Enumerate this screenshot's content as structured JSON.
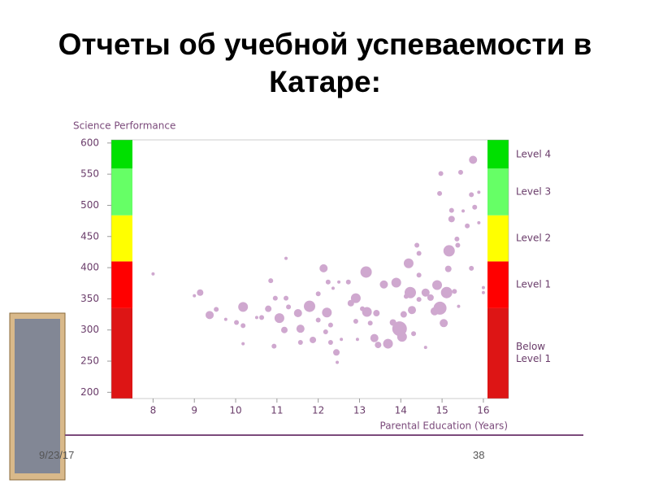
{
  "slide": {
    "title": "Отчеты об учебной успеваемости в Катаре:",
    "date": "9/23/17",
    "page": "38"
  },
  "chart_data": {
    "type": "scatter",
    "y_label": "Science Performance",
    "x_label": "Parental Education (Years)",
    "xlim": [
      7.5,
      16.1
    ],
    "xticks": [
      8,
      9,
      10,
      11,
      12,
      13,
      14,
      15,
      16
    ],
    "ylim": [
      190,
      605
    ],
    "yticks": [
      200,
      250,
      300,
      350,
      400,
      450,
      500,
      550,
      600
    ],
    "color": "#cfa8cf",
    "bands": [
      {
        "label": "Below Level 1",
        "color": "#dd1515"
      },
      {
        "label": "Level 1",
        "from": 335,
        "color": "#ff0000"
      },
      {
        "label": "Level 2",
        "from": 410,
        "color": "#ffff00"
      },
      {
        "label": "Level 3",
        "from": 484,
        "color": "#66ff66"
      },
      {
        "label": "Level 4",
        "from": 559,
        "color": "#00e000"
      }
    ],
    "x": [
      8.0,
      9.14,
      9.0,
      9.37,
      9.53,
      9.76,
      10.02,
      10.18,
      10.18,
      10.18,
      10.51,
      10.63,
      10.79,
      10.85,
      10.96,
      11.06,
      11.18,
      10.93,
      11.22,
      11.28,
      11.22,
      11.51,
      11.57,
      11.57,
      11.79,
      11.87,
      12.0,
      12.0,
      12.13,
      12.21,
      12.24,
      12.18,
      12.3,
      12.3,
      12.36,
      12.44,
      12.46,
      12.5,
      12.56,
      12.73,
      12.79,
      12.91,
      12.95,
      12.91,
      13.07,
      13.16,
      13.18,
      13.26,
      13.41,
      13.36,
      13.45,
      13.59,
      13.69,
      13.81,
      13.89,
      13.97,
      14.03,
      14.07,
      14.13,
      14.19,
      14.23,
      14.27,
      14.31,
      14.39,
      14.44,
      14.44,
      14.44,
      14.6,
      14.6,
      14.72,
      14.82,
      14.88,
      14.94,
      14.95,
      14.97,
      15.04,
      15.11,
      15.15,
      15.17,
      15.23,
      15.23,
      15.3,
      15.38,
      15.36,
      15.4,
      15.45,
      15.51,
      15.61,
      15.71,
      15.71,
      15.75,
      15.79,
      15.89,
      15.89,
      16.0,
      16.0
    ],
    "values": [
      390,
      360,
      355,
      324,
      333,
      317,
      312,
      337,
      307,
      278,
      320,
      320,
      334,
      379,
      351,
      319,
      300,
      274,
      415,
      337,
      351,
      327,
      302,
      280,
      338,
      284,
      316,
      358,
      399,
      328,
      377,
      297,
      308,
      280,
      367,
      264,
      248,
      377,
      285,
      377,
      343,
      351,
      285,
      314,
      334,
      393,
      329,
      311,
      327,
      287,
      276,
      373,
      278,
      312,
      376,
      302,
      289,
      325,
      354,
      407,
      360,
      332,
      294,
      436,
      388,
      423,
      349,
      272,
      360,
      352,
      330,
      372,
      519,
      335,
      551,
      311,
      360,
      398,
      427,
      478,
      492,
      362,
      436,
      446,
      338,
      553,
      491,
      467,
      517,
      399,
      573,
      497,
      521,
      472,
      368,
      360
    ],
    "sizes": [
      2,
      4,
      2,
      5,
      3,
      2,
      3,
      6,
      3,
      2,
      2,
      3,
      4,
      3,
      3,
      6,
      4,
      3,
      2,
      3,
      3,
      5,
      5,
      3,
      7,
      4,
      3,
      3,
      5,
      6,
      3,
      3,
      3,
      3,
      2,
      4,
      2,
      2,
      2,
      3,
      4,
      6,
      2,
      3,
      3,
      7,
      6,
      3,
      4,
      5,
      4,
      5,
      6,
      4,
      6,
      9,
      6,
      4,
      3,
      6,
      7,
      5,
      3,
      3,
      3,
      3,
      3,
      2,
      5,
      4,
      5,
      6,
      3,
      8,
      3,
      5,
      7,
      4,
      7,
      4,
      3,
      3,
      3,
      3,
      2,
      3,
      2,
      3,
      3,
      3,
      5,
      3,
      2,
      2,
      2,
      2
    ]
  }
}
